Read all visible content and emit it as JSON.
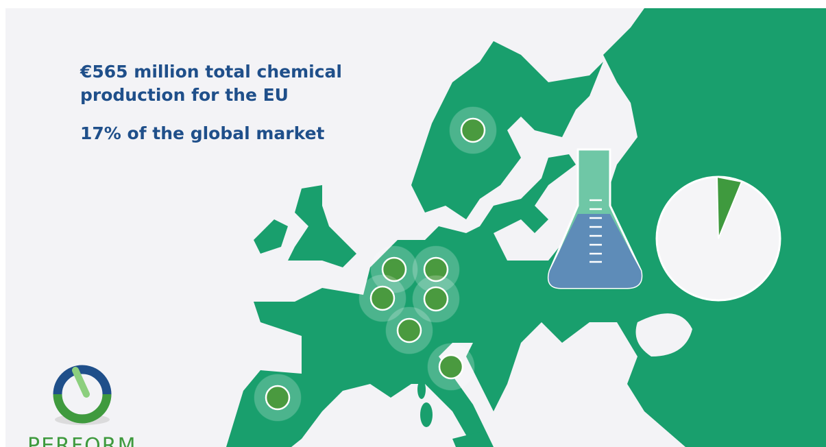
{
  "headline": {
    "lines": [
      "€565 million total chemical",
      "production for the EU"
    ]
  },
  "market_share": "17% of the global market",
  "logo": {
    "text": "PERFORM"
  }
}
